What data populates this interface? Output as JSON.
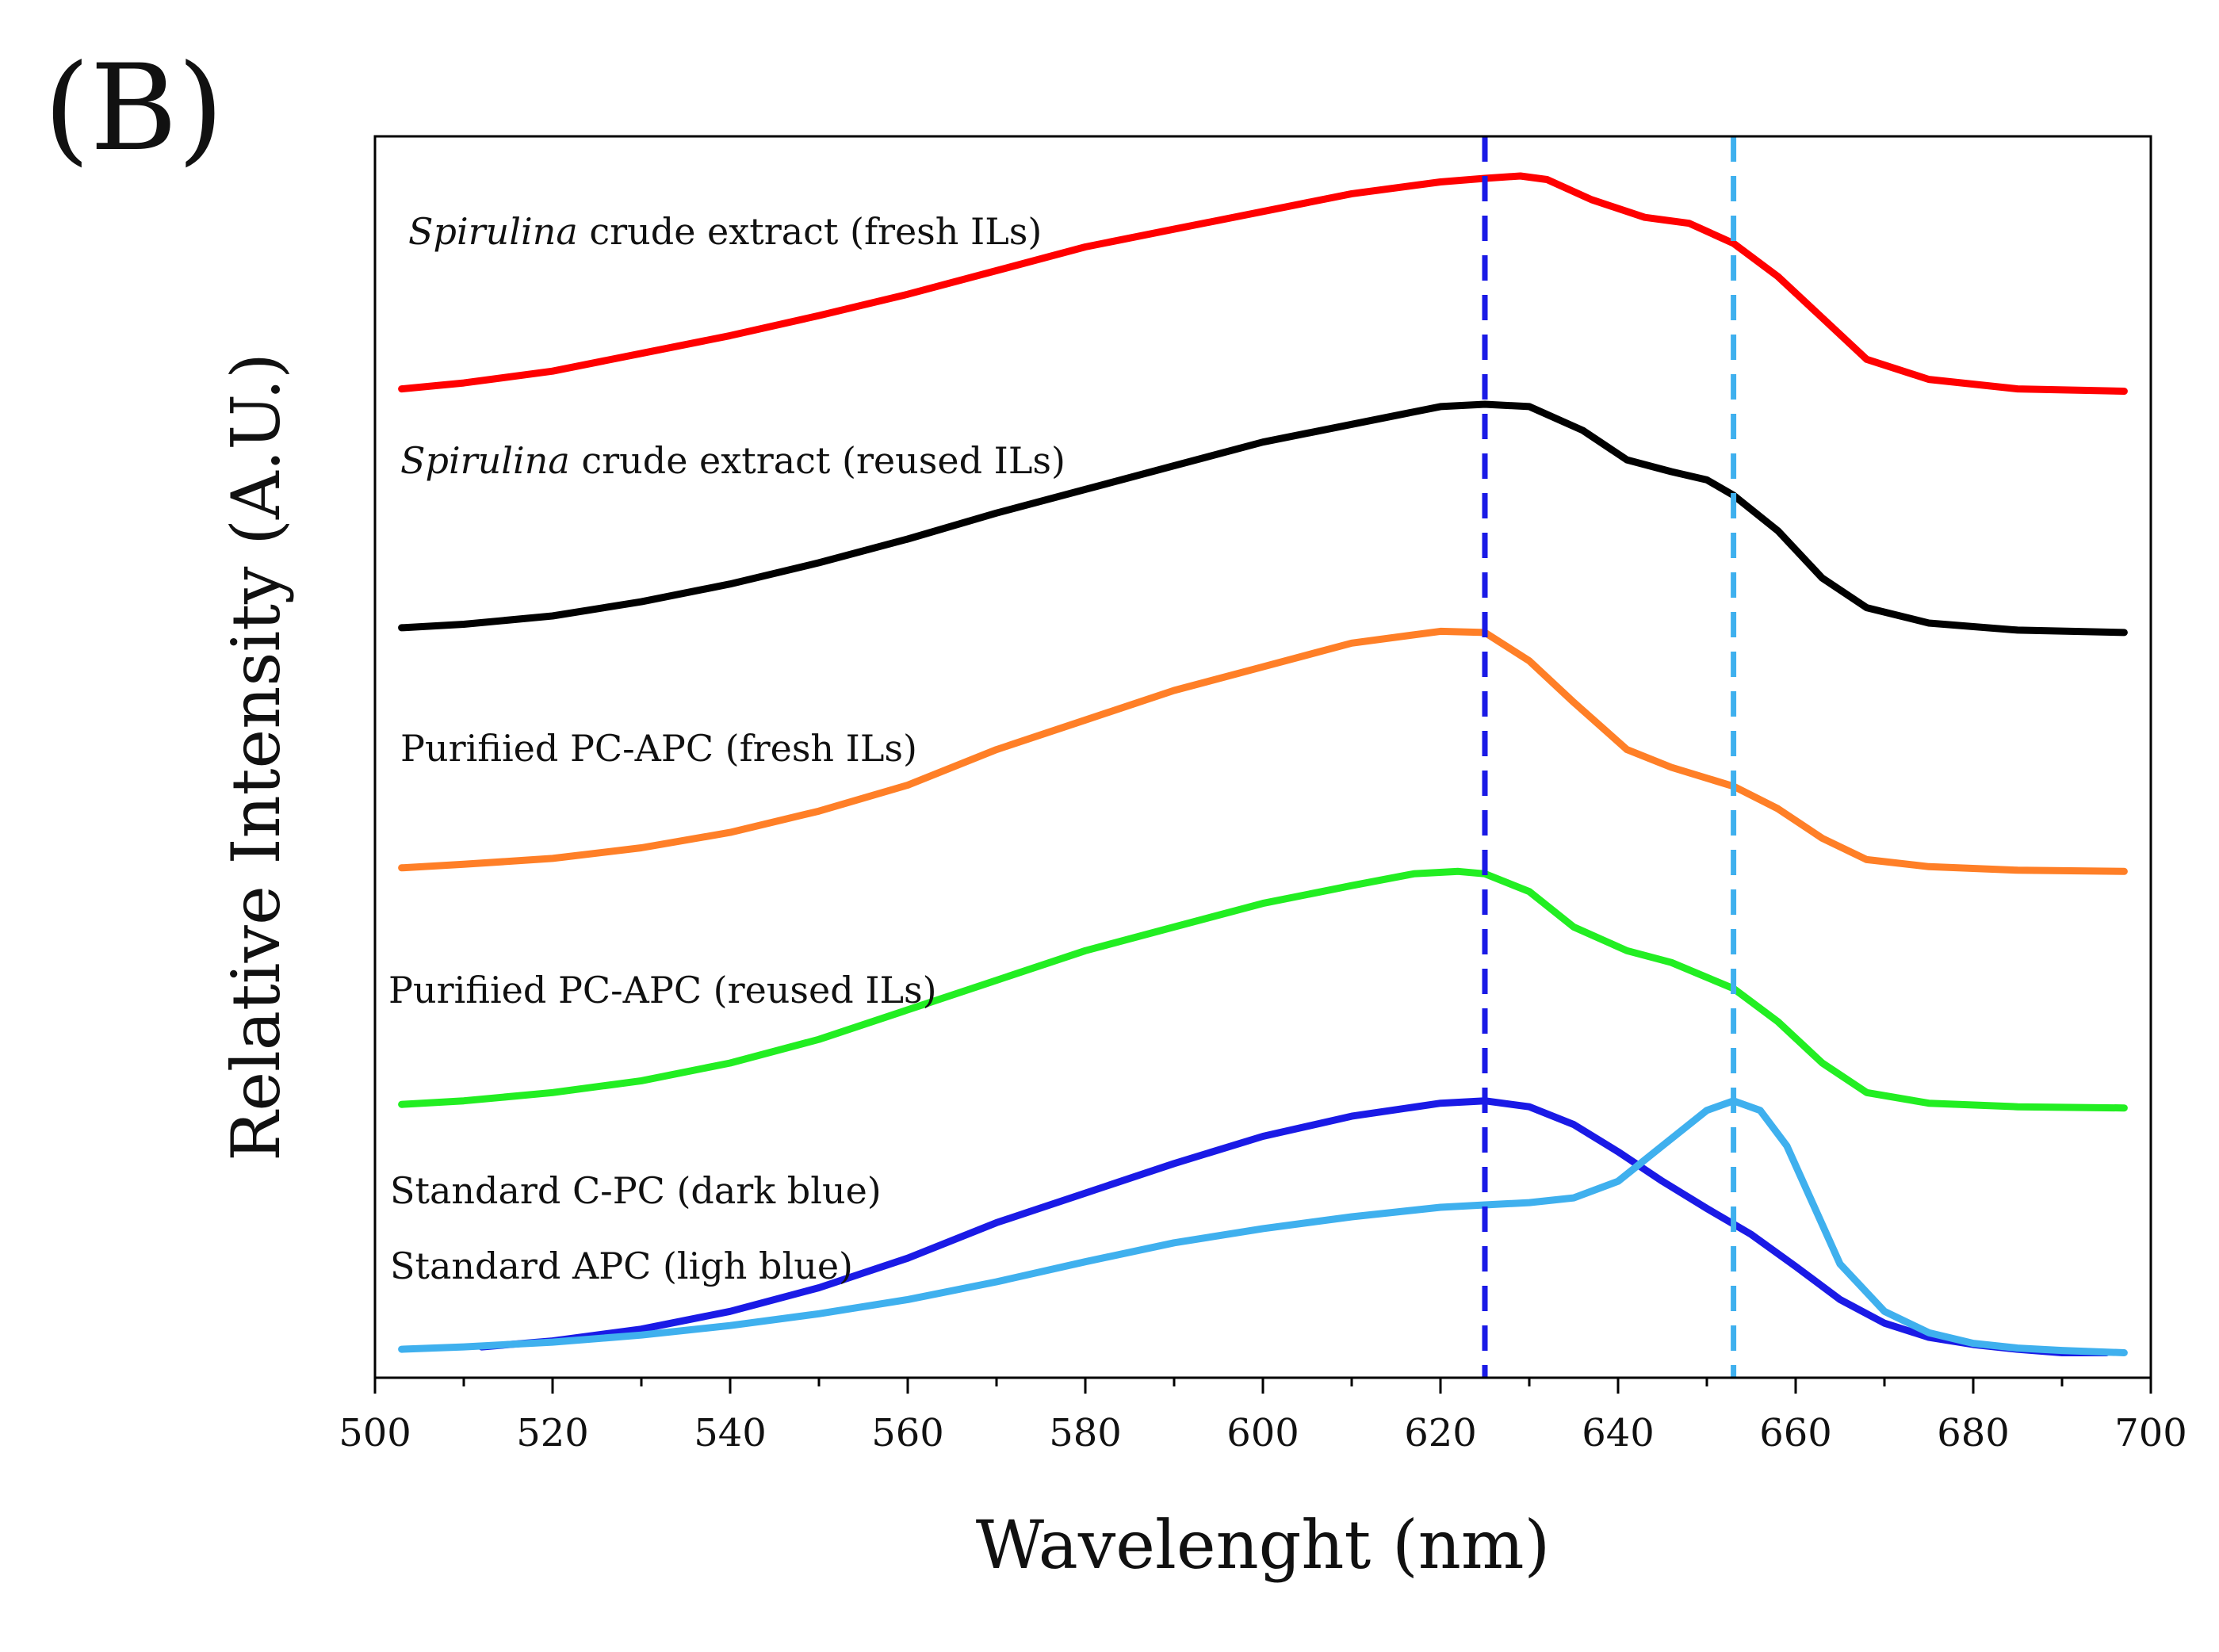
{
  "panel_label": "(B)",
  "chart_data": {
    "type": "line",
    "title": "",
    "xlabel": "Wavelenght (nm)",
    "ylabel": "Relative Intensity (A.U.)",
    "xlim": [
      500,
      700
    ],
    "ylim": [
      0,
      100
    ],
    "xticks": [
      500,
      520,
      540,
      560,
      580,
      600,
      620,
      640,
      660,
      680,
      700
    ],
    "y_tick_labels": "none",
    "reference_lines": [
      {
        "x": 625,
        "color": "#1a1ae6",
        "style": "dashed"
      },
      {
        "x": 653,
        "color": "#3fb0ee",
        "style": "dashed"
      }
    ],
    "series": [
      {
        "name": "Spirulina crude extract (fresh ILs)",
        "label_italic": "Spirulina",
        "label_rest": " crude extract (fresh ILs)",
        "color": "#ff0000",
        "x": [
          503,
          510,
          520,
          530,
          540,
          550,
          560,
          570,
          580,
          590,
          600,
          610,
          620,
          625,
          629,
          632,
          637,
          643,
          648,
          653,
          658,
          663,
          668,
          675,
          685,
          697
        ],
        "values": [
          82.0,
          82.5,
          83.5,
          85.0,
          86.5,
          88.2,
          90.0,
          92.0,
          94.0,
          95.5,
          97.0,
          98.5,
          99.5,
          99.8,
          100.0,
          99.7,
          98.0,
          96.5,
          96.0,
          94.3,
          91.5,
          88.0,
          84.5,
          82.8,
          82.0,
          81.8
        ]
      },
      {
        "name": "Spirulina crude extract (reused ILs)",
        "label_italic": "Spirulina",
        "label_rest": " crude extract (reused ILs)",
        "color": "#000000",
        "x": [
          503,
          510,
          520,
          530,
          540,
          550,
          560,
          570,
          580,
          590,
          600,
          610,
          620,
          625,
          630,
          636,
          641,
          646,
          650,
          653,
          658,
          663,
          668,
          675,
          685,
          697
        ],
        "values": [
          61.8,
          62.1,
          62.8,
          64.0,
          65.5,
          67.3,
          69.3,
          71.5,
          73.5,
          75.5,
          77.5,
          79.0,
          80.5,
          80.7,
          80.5,
          78.5,
          76.0,
          75.0,
          74.3,
          73.0,
          70.0,
          66.0,
          63.5,
          62.2,
          61.6,
          61.4
        ]
      },
      {
        "name": "Purifiied PC-APC (fresh ILs)",
        "label_italic": "",
        "label_rest": "Purifiied PC-APC (fresh ILs)",
        "color": "#ff7f27",
        "x": [
          503,
          510,
          520,
          530,
          540,
          550,
          560,
          570,
          580,
          590,
          600,
          610,
          620,
          625,
          630,
          635,
          641,
          646,
          653,
          658,
          663,
          668,
          675,
          685,
          697
        ],
        "values": [
          41.5,
          41.8,
          42.3,
          43.2,
          44.5,
          46.3,
          48.5,
          51.5,
          54.0,
          56.5,
          58.5,
          60.5,
          61.5,
          61.4,
          59.0,
          55.5,
          51.5,
          50.0,
          48.4,
          46.5,
          44.0,
          42.2,
          41.6,
          41.3,
          41.2
        ]
      },
      {
        "name": "Purifiied PC-APC (reused ILs)",
        "label_italic": "",
        "label_rest": "Purifiied PC-APC (reused ILs)",
        "color": "#22ee22",
        "x": [
          503,
          510,
          520,
          530,
          540,
          550,
          560,
          570,
          580,
          590,
          600,
          610,
          617,
          622,
          625,
          630,
          635,
          641,
          646,
          653,
          658,
          663,
          668,
          675,
          685,
          697
        ],
        "values": [
          21.5,
          21.8,
          22.5,
          23.5,
          25.0,
          27.0,
          29.5,
          32.0,
          34.5,
          36.5,
          38.5,
          40.0,
          41.0,
          41.2,
          41.0,
          39.5,
          36.5,
          34.5,
          33.5,
          31.3,
          28.5,
          25.0,
          22.5,
          21.6,
          21.3,
          21.2
        ]
      },
      {
        "name": "Standard C-PC (dark blue)",
        "label_italic": "",
        "label_rest": "Standard C-PC (dark blue)",
        "color": "#1a1ae6",
        "x": [
          512,
          520,
          530,
          540,
          550,
          560,
          570,
          580,
          590,
          600,
          610,
          620,
          625,
          630,
          635,
          640,
          645,
          650,
          655,
          660,
          665,
          670,
          675,
          680,
          685,
          690,
          695
        ],
        "values": [
          1.0,
          1.5,
          2.5,
          4.0,
          6.0,
          8.5,
          11.5,
          14.0,
          16.5,
          18.8,
          20.5,
          21.6,
          21.8,
          21.3,
          19.8,
          17.5,
          15.0,
          12.7,
          10.5,
          7.8,
          5.0,
          3.0,
          1.8,
          1.2,
          0.8,
          0.5,
          0.5
        ]
      },
      {
        "name": "Standard APC (ligh blue)",
        "label_italic": "",
        "label_rest": "Standard APC (ligh blue)",
        "color": "#3fb0ee",
        "x": [
          503,
          510,
          520,
          530,
          540,
          550,
          560,
          570,
          580,
          590,
          600,
          610,
          620,
          625,
          630,
          635,
          640,
          645,
          650,
          653,
          656,
          659,
          662,
          665,
          670,
          675,
          680,
          685,
          690,
          697
        ],
        "values": [
          0.8,
          1.0,
          1.4,
          2.0,
          2.8,
          3.8,
          5.0,
          6.5,
          8.2,
          9.8,
          11.0,
          12.0,
          12.8,
          13.0,
          13.2,
          13.6,
          15.0,
          18.0,
          21.0,
          21.8,
          21.0,
          18.0,
          13.0,
          8.0,
          4.0,
          2.2,
          1.3,
          0.9,
          0.7,
          0.5
        ]
      }
    ]
  }
}
